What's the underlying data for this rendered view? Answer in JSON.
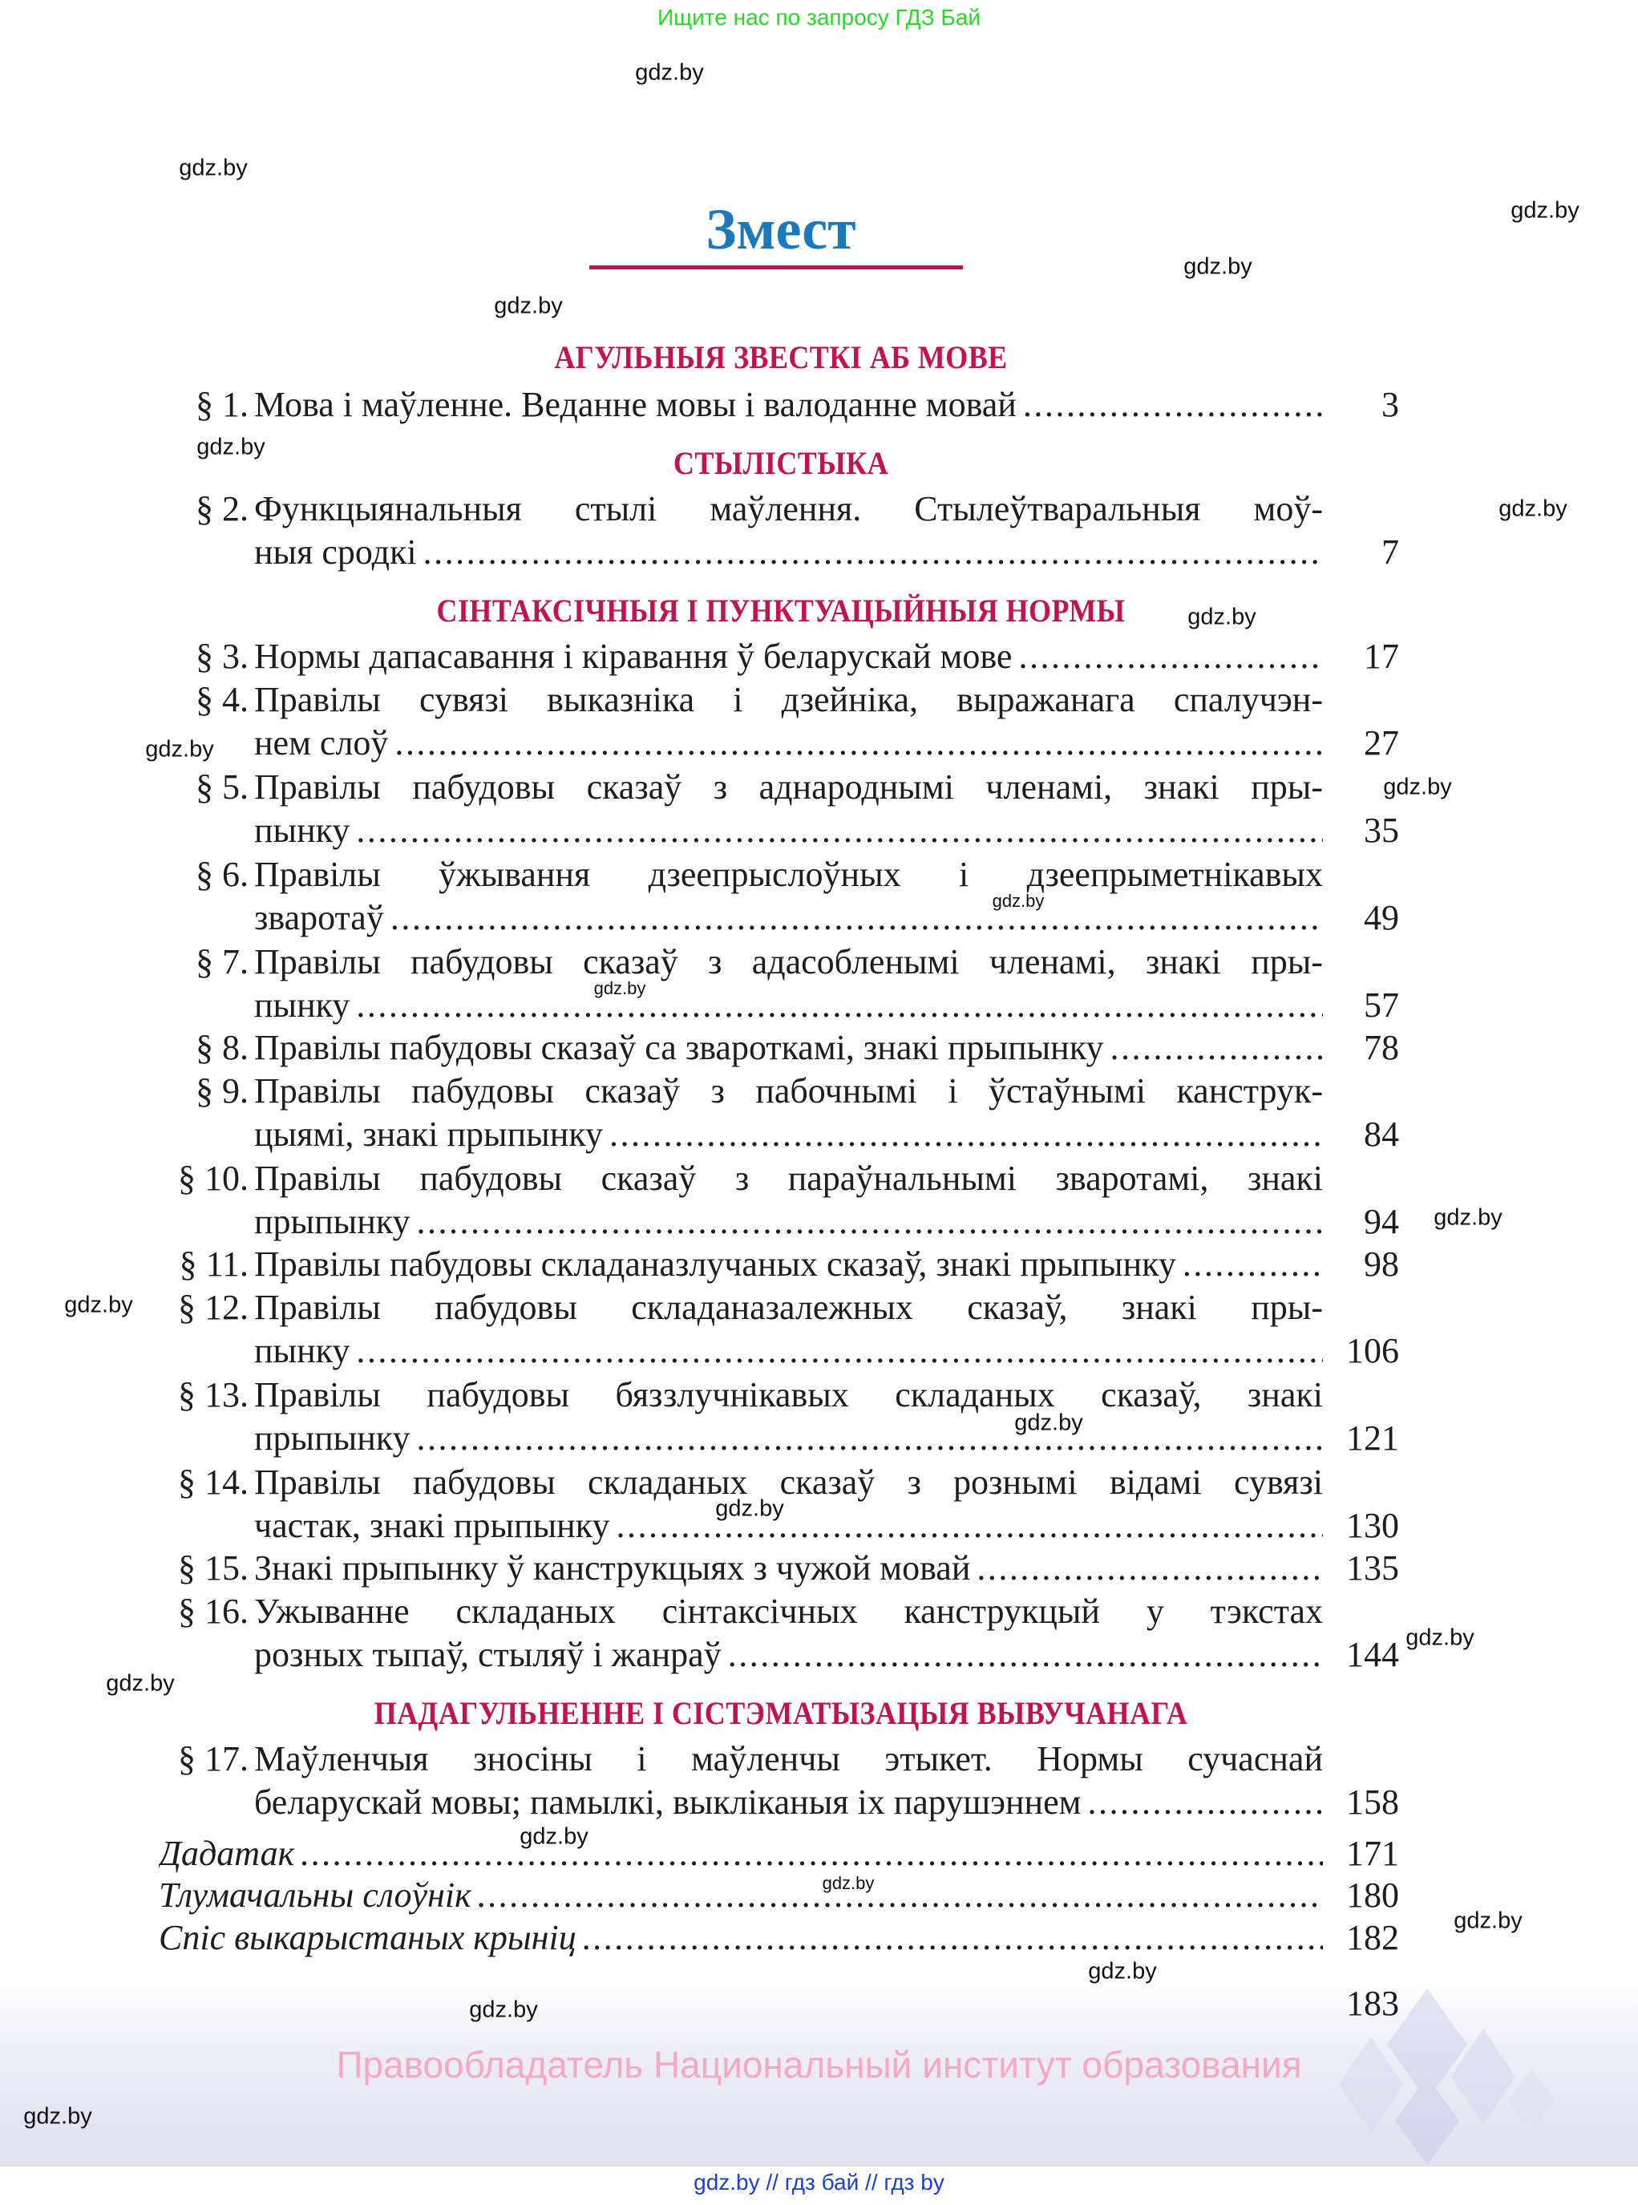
{
  "top_banner": "Ищите нас по запросу ГДЗ Бай",
  "watermark": "gdz.by",
  "title": "Змест",
  "sections": [
    {
      "heading": "АГУЛЬНЫЯ ЗВЕСТКІ АБ МОВЕ",
      "entries": [
        {
          "num": "§ 1.",
          "lines": [
            "Мова і маўленне. Веданне мовы і валоданне мовай"
          ],
          "page": "3"
        }
      ]
    },
    {
      "heading": "СТЫЛІСТЫКА",
      "entries": [
        {
          "num": "§ 2.",
          "lines": [
            "Функцыянальныя стылі маўлення. Стылеўтваральныя моў-",
            "ныя сродкі"
          ],
          "page": "7"
        }
      ]
    },
    {
      "heading": "СІНТАКСІЧНЫЯ І ПУНКТУАЦЫЙНЫЯ НОРМЫ",
      "entries": [
        {
          "num": "§ 3.",
          "lines": [
            "Нормы дапасавання і кіравання ў беларускай мове"
          ],
          "page": "17"
        },
        {
          "num": "§ 4.",
          "lines": [
            "Правілы сувязі выказніка і дзейніка, выражанага спалучэн-",
            "нем слоў"
          ],
          "page": "27"
        },
        {
          "num": "§ 5.",
          "lines": [
            "Правілы пабудовы сказаў з аднароднымі членамі, знакі пры-",
            "пынку"
          ],
          "page": "35"
        },
        {
          "num": "§ 6.",
          "lines": [
            "Правілы ўжывання дзеепрыслоўных і дзеепрыметнікавых",
            "зваротаў"
          ],
          "page": "49"
        },
        {
          "num": "§ 7.",
          "lines": [
            "Правілы пабудовы сказаў з адасобленымі членамі, знакі пры-",
            "пынку"
          ],
          "page": "57"
        },
        {
          "num": "§ 8.",
          "lines": [
            "Правілы пабудовы сказаў са звароткамі, знакі прыпынку"
          ],
          "page": "78"
        },
        {
          "num": "§ 9.",
          "lines": [
            "Правілы пабудовы сказаў з пабочнымі і ўстаўнымі канструк-",
            "цыямі, знакі прыпынку"
          ],
          "page": "84"
        },
        {
          "num": "§ 10.",
          "lines": [
            "Правілы пабудовы сказаў з параўнальнымі зваротамі, знакі",
            "прыпынку"
          ],
          "page": "94"
        },
        {
          "num": "§ 11.",
          "lines": [
            "Правілы пабудовы складаназлучаных сказаў, знакі прыпынку"
          ],
          "page": "98"
        },
        {
          "num": "§ 12.",
          "lines": [
            "Правілы пабудовы складаназалежных сказаў, знакі пры-",
            "пынку"
          ],
          "page": "106"
        },
        {
          "num": "§ 13.",
          "lines": [
            "Правілы пабудовы бяззлучнікавых складаных сказаў, знакі",
            "прыпынку"
          ],
          "page": "121"
        },
        {
          "num": "§ 14.",
          "lines": [
            "Правілы пабудовы складаных сказаў з рознымі відамі сувязі",
            "частак, знакі прыпынку"
          ],
          "page": "130"
        },
        {
          "num": "§ 15.",
          "lines": [
            "Знакі прыпынку ў канструкцыях з чужой мовай"
          ],
          "page": "135"
        },
        {
          "num": "§ 16.",
          "lines": [
            "Ужыванне складаных сінтаксічных канструкцый у тэкстах",
            "розных тыпаў, стыляў і жанраў"
          ],
          "page": "144"
        }
      ]
    },
    {
      "heading": "ПАДАГУЛЬНЕННЕ І СІСТЭМАТЫЗАЦЫЯ ВЫВУЧАНАГА",
      "entries": [
        {
          "num": "§ 17.",
          "lines": [
            "Маўленчыя зносіны і маўленчы этыкет. Нормы сучаснай",
            "беларускай мовы; памылкі, выкліканыя іх парушэннем"
          ],
          "page": "158"
        }
      ]
    }
  ],
  "appendix": [
    {
      "label": "Дадатак",
      "page": "171"
    },
    {
      "label": "Тлумачальны слоўнік",
      "page": "180"
    },
    {
      "label": "Спіс выкарыстаных крыніц",
      "page": "182"
    }
  ],
  "final_page": "183",
  "rights_holder": "Правообладатель Национальный институт образования",
  "footer": "gdz.by  //  гдз бай  //  гдз by",
  "colors": {
    "title": "#1a78bd",
    "heading": "#c4124f",
    "banner": "#22dd22",
    "footer": "#1a3fd6",
    "rights_holder": "#f5a8c0"
  }
}
